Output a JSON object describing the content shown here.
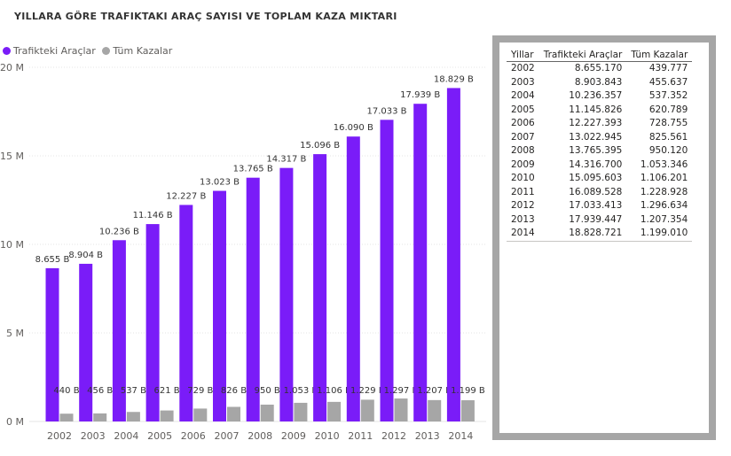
{
  "title": "YILLARA GÖRE TRAFIKTAKI ARAÇ SAYISI VE TOPLAM KAZA MIKTARI",
  "legend": [
    {
      "label": "Trafikteki Araçlar",
      "color": "#7a1cf8"
    },
    {
      "label": "Tüm Kazalar",
      "color": "#a6a6a6"
    }
  ],
  "chart_data": {
    "type": "bar",
    "categories": [
      "2002",
      "2003",
      "2004",
      "2005",
      "2006",
      "2007",
      "2008",
      "2009",
      "2010",
      "2011",
      "2012",
      "2013",
      "2014"
    ],
    "series": [
      {
        "name": "Trafikteki Araçlar",
        "color": "#7a1cf8",
        "values": [
          8655170,
          8903843,
          10236357,
          11145826,
          12227393,
          13022945,
          13765395,
          14316700,
          15095603,
          16089528,
          17033413,
          17939447,
          18828721
        ],
        "labels": [
          "8.655 B",
          "8.904 B",
          "10.236 B",
          "11.146 B",
          "12.227 B",
          "13.023 B",
          "13.765 B",
          "14.317 B",
          "15.096 B",
          "16.090 B",
          "17.033 B",
          "17.939 B",
          "18.829 B"
        ]
      },
      {
        "name": "Tüm Kazalar",
        "color": "#a6a6a6",
        "values": [
          439777,
          455637,
          537352,
          620789,
          728755,
          825561,
          950120,
          1053346,
          1106201,
          1228928,
          1296634,
          1207354,
          1199010
        ],
        "labels": [
          "440 B",
          "456 B",
          "537 B",
          "621 B",
          "729 B",
          "826 B",
          "950 B",
          "1.053 B",
          "1.106 B",
          "1.229 B",
          "1.297 B",
          "1.207 B",
          "1.199 B"
        ]
      }
    ],
    "y_ticks": [
      {
        "value": 0,
        "label": "0 M"
      },
      {
        "value": 5000000,
        "label": "5 M"
      },
      {
        "value": 10000000,
        "label": "10 M"
      },
      {
        "value": 15000000,
        "label": "15 M"
      },
      {
        "value": 20000000,
        "label": "20 M"
      }
    ],
    "ylim": [
      0,
      20000000
    ],
    "grid": true,
    "legend_position": "top-left"
  },
  "table": {
    "headers": [
      "Yillar",
      "Trafikteki Araçlar",
      "Tüm Kazalar"
    ],
    "rows": [
      [
        "2002",
        "8.655.170",
        "439.777"
      ],
      [
        "2003",
        "8.903.843",
        "455.637"
      ],
      [
        "2004",
        "10.236.357",
        "537.352"
      ],
      [
        "2005",
        "11.145.826",
        "620.789"
      ],
      [
        "2006",
        "12.227.393",
        "728.755"
      ],
      [
        "2007",
        "13.022.945",
        "825.561"
      ],
      [
        "2008",
        "13.765.395",
        "950.120"
      ],
      [
        "2009",
        "14.316.700",
        "1.053.346"
      ],
      [
        "2010",
        "15.095.603",
        "1.106.201"
      ],
      [
        "2011",
        "16.089.528",
        "1.228.928"
      ],
      [
        "2012",
        "17.033.413",
        "1.296.634"
      ],
      [
        "2013",
        "17.939.447",
        "1.207.354"
      ],
      [
        "2014",
        "18.828.721",
        "1.199.010"
      ]
    ]
  }
}
